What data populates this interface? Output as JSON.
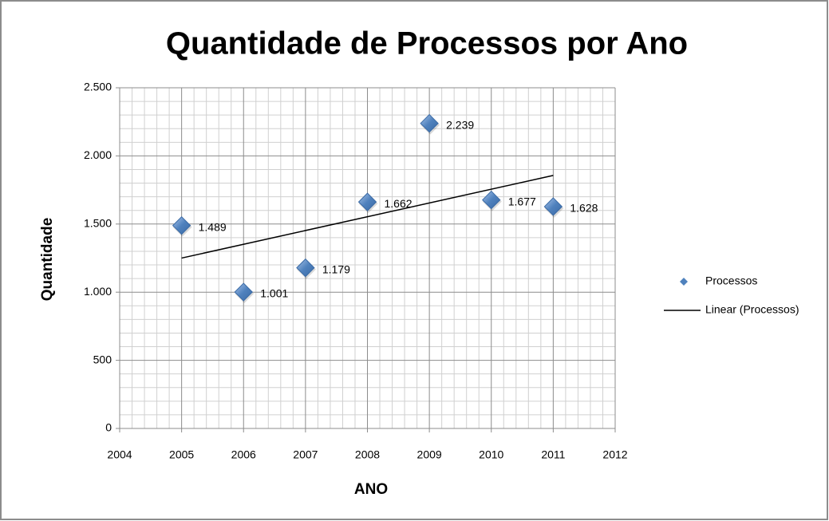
{
  "chart_data": {
    "type": "scatter",
    "title": "Quantidade de Processos por Ano",
    "x_label": "ANO",
    "y_label": "Quantidade",
    "x": [
      2005,
      2006,
      2007,
      2008,
      2009,
      2010,
      2011
    ],
    "series": [
      {
        "name": "Processos",
        "color": "#4f81bd",
        "values": [
          1489,
          1001,
          1179,
          1662,
          2239,
          1677,
          1628
        ],
        "value_labels": [
          "1.489",
          "1.001",
          "1.179",
          "1.662",
          "2.239",
          "1.677",
          "1.628"
        ]
      }
    ],
    "trendline": {
      "name": "Linear (Processos)",
      "kind": "linear",
      "color": "#000000"
    },
    "xlim": [
      2004,
      2012
    ],
    "xticks": [
      2004,
      2005,
      2006,
      2007,
      2008,
      2009,
      2010,
      2011,
      2012
    ],
    "ylim": [
      0,
      2500
    ],
    "yticks": [
      0,
      500,
      {
        "value": 1000,
        "label": "1.000"
      },
      {
        "value": 1500,
        "label": "1.500"
      },
      {
        "value": 2000,
        "label": "2.000"
      },
      {
        "value": 2500,
        "label": "2.500"
      }
    ],
    "grid": true,
    "minor_grid": true,
    "legend": "right"
  }
}
